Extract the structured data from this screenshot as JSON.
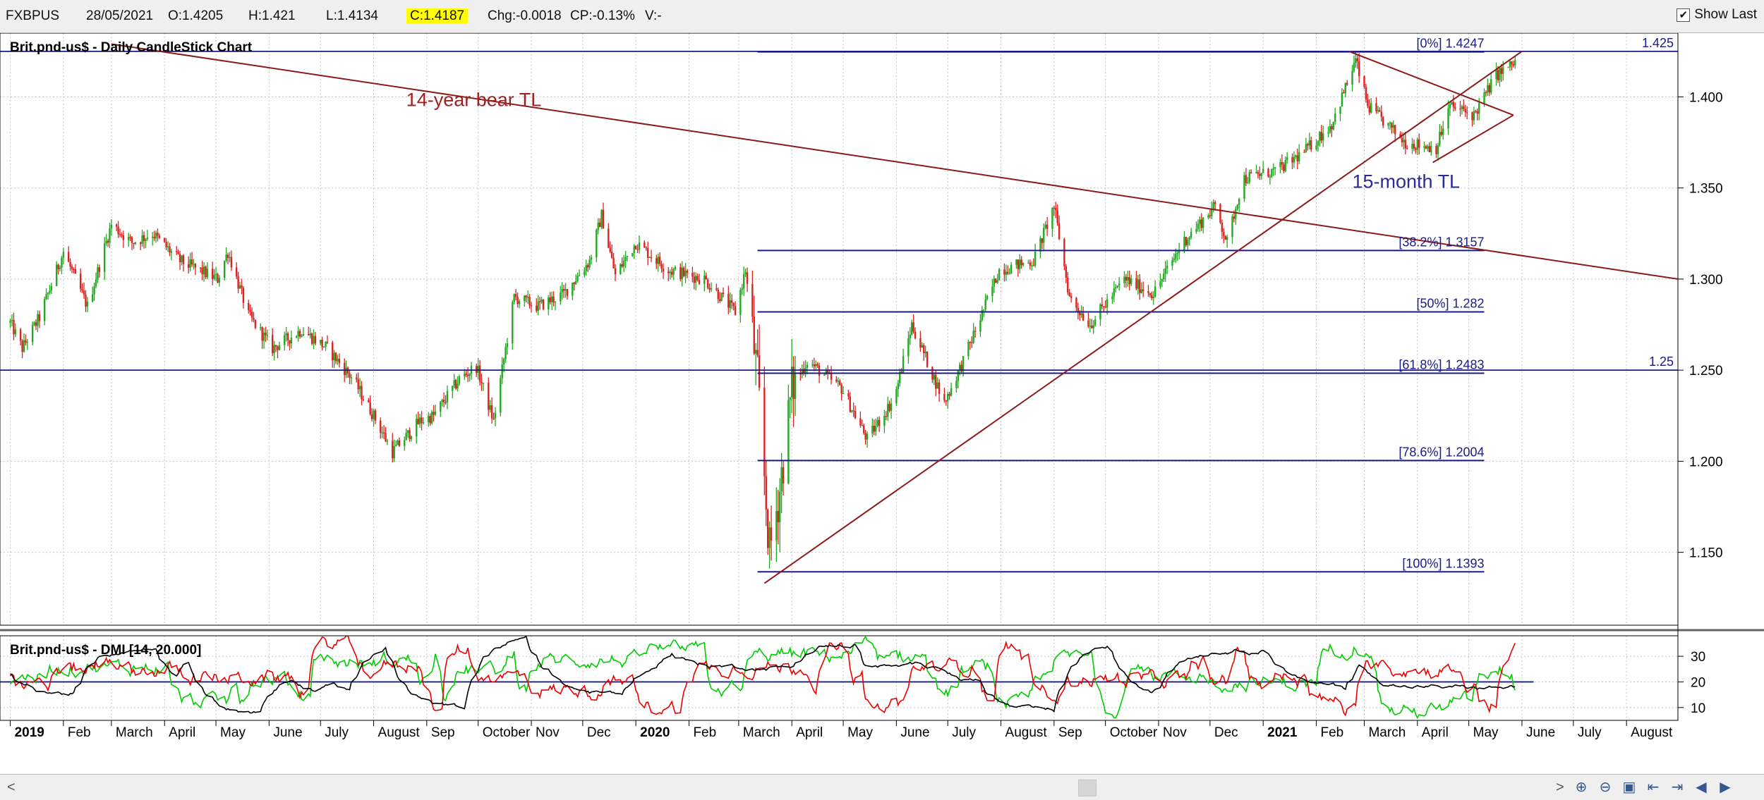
{
  "header": {
    "symbol": "FXBPUS",
    "date": "28/05/2021",
    "open": "O:1.4205",
    "high": "H:1.421",
    "low": "L:1.4134",
    "close": "C:1.4187",
    "change": "Chg:-0.0018",
    "change_pct": "CP:-0.13%",
    "volume": "V:-",
    "show_last_label": "Show Last",
    "show_last_checked": true
  },
  "chart_data": [
    {
      "type": "candlestick",
      "title": "Brit.pnd-us$ - Daily CandleStick Chart",
      "ylim": [
        1.11,
        1.435
      ],
      "y_ticks": [
        "1.150",
        "1.200",
        "1.250",
        "1.300",
        "1.350",
        "1.400"
      ],
      "x_labels": [
        "2019",
        "Feb",
        "March",
        "April",
        "May",
        "June",
        "July",
        "August",
        "Sep",
        "October",
        "Nov",
        "Dec",
        "2020",
        "Feb",
        "March",
        "April",
        "May",
        "June",
        "July",
        "August",
        "Sep",
        "October",
        "Nov",
        "Dec",
        "2021",
        "Feb",
        "March",
        "April",
        "May",
        "June",
        "July",
        "August"
      ],
      "close_path": [
        {
          "date": "2019-01-01",
          "value": 1.276
        },
        {
          "date": "2019-01-08",
          "value": 1.262
        },
        {
          "date": "2019-01-18",
          "value": 1.279
        },
        {
          "date": "2019-02-01",
          "value": 1.315
        },
        {
          "date": "2019-02-15",
          "value": 1.285
        },
        {
          "date": "2019-03-01",
          "value": 1.33
        },
        {
          "date": "2019-03-13",
          "value": 1.32
        },
        {
          "date": "2019-03-25",
          "value": 1.325
        },
        {
          "date": "2019-04-10",
          "value": 1.31
        },
        {
          "date": "2019-05-02",
          "value": 1.3
        },
        {
          "date": "2019-05-08",
          "value": 1.315
        },
        {
          "date": "2019-05-20",
          "value": 1.28
        },
        {
          "date": "2019-06-03",
          "value": 1.262
        },
        {
          "date": "2019-06-20",
          "value": 1.272
        },
        {
          "date": "2019-07-05",
          "value": 1.262
        },
        {
          "date": "2019-07-20",
          "value": 1.245
        },
        {
          "date": "2019-08-01",
          "value": 1.225
        },
        {
          "date": "2019-08-12",
          "value": 1.205
        },
        {
          "date": "2019-08-28",
          "value": 1.222
        },
        {
          "date": "2019-09-05",
          "value": 1.225
        },
        {
          "date": "2019-09-20",
          "value": 1.245
        },
        {
          "date": "2019-09-30",
          "value": 1.252
        },
        {
          "date": "2019-10-10",
          "value": 1.222
        },
        {
          "date": "2019-10-22",
          "value": 1.29
        },
        {
          "date": "2019-11-05",
          "value": 1.285
        },
        {
          "date": "2019-11-20",
          "value": 1.292
        },
        {
          "date": "2019-12-05",
          "value": 1.31
        },
        {
          "date": "2019-12-12",
          "value": 1.335
        },
        {
          "date": "2019-12-20",
          "value": 1.302
        },
        {
          "date": "2020-01-01",
          "value": 1.32
        },
        {
          "date": "2020-01-20",
          "value": 1.305
        },
        {
          "date": "2020-02-10",
          "value": 1.3
        },
        {
          "date": "2020-02-28",
          "value": 1.282
        },
        {
          "date": "2020-03-05",
          "value": 1.305
        },
        {
          "date": "2020-03-12",
          "value": 1.245
        },
        {
          "date": "2020-03-19",
          "value": 1.15
        },
        {
          "date": "2020-03-25",
          "value": 1.185
        },
        {
          "date": "2020-04-01",
          "value": 1.24
        },
        {
          "date": "2020-04-10",
          "value": 1.255
        },
        {
          "date": "2020-04-30",
          "value": 1.24
        },
        {
          "date": "2020-05-15",
          "value": 1.212
        },
        {
          "date": "2020-05-31",
          "value": 1.235
        },
        {
          "date": "2020-06-10",
          "value": 1.275
        },
        {
          "date": "2020-06-29",
          "value": 1.232
        },
        {
          "date": "2020-07-10",
          "value": 1.255
        },
        {
          "date": "2020-07-31",
          "value": 1.305
        },
        {
          "date": "2020-08-20",
          "value": 1.31
        },
        {
          "date": "2020-09-01",
          "value": 1.34
        },
        {
          "date": "2020-09-10",
          "value": 1.29
        },
        {
          "date": "2020-09-22",
          "value": 1.275
        },
        {
          "date": "2020-10-12",
          "value": 1.3
        },
        {
          "date": "2020-10-29",
          "value": 1.292
        },
        {
          "date": "2020-11-15",
          "value": 1.32
        },
        {
          "date": "2020-12-04",
          "value": 1.34
        },
        {
          "date": "2020-12-11",
          "value": 1.32
        },
        {
          "date": "2020-12-20",
          "value": 1.355
        },
        {
          "date": "2021-01-10",
          "value": 1.36
        },
        {
          "date": "2021-01-25",
          "value": 1.37
        },
        {
          "date": "2021-02-10",
          "value": 1.385
        },
        {
          "date": "2021-02-24",
          "value": 1.42
        },
        {
          "date": "2021-03-03",
          "value": 1.395
        },
        {
          "date": "2021-03-25",
          "value": 1.375
        },
        {
          "date": "2021-04-12",
          "value": 1.372
        },
        {
          "date": "2021-04-20",
          "value": 1.395
        },
        {
          "date": "2021-05-04",
          "value": 1.39
        },
        {
          "date": "2021-05-17",
          "value": 1.412
        },
        {
          "date": "2021-05-28",
          "value": 1.4187
        }
      ],
      "fibonacci": {
        "start_date": "2020-03-12",
        "end_date": "2021-05-10",
        "levels": [
          {
            "label": "[0%] 1.4247",
            "value": 1.4247
          },
          {
            "label": "[38.2%] 1.3157",
            "value": 1.3157
          },
          {
            "label": "[50%] 1.282",
            "value": 1.282
          },
          {
            "label": "[61.8%] 1.2483",
            "value": 1.2483
          },
          {
            "label": "[78.6%] 1.2004",
            "value": 1.2004
          },
          {
            "label": "[100%] 1.1393",
            "value": 1.1393
          }
        ]
      },
      "horizontal_lines": [
        {
          "value": 1.425,
          "label": "1.425"
        },
        {
          "value": 1.25,
          "label": "1.25"
        }
      ],
      "trendlines": [
        {
          "from": {
            "date": "2019-03-01",
            "value": 1.429
          },
          "to": {
            "date": "2021-08-31",
            "value": 1.3
          }
        },
        {
          "from": {
            "date": "2020-03-16",
            "value": 1.133
          },
          "to": {
            "date": "2021-06-01",
            "value": 1.425
          }
        },
        {
          "from": {
            "date": "2021-02-20",
            "value": 1.425
          },
          "to": {
            "date": "2021-05-27",
            "value": 1.39
          }
        },
        {
          "from": {
            "date": "2021-04-10",
            "value": 1.364
          },
          "to": {
            "date": "2021-05-27",
            "value": 1.39
          }
        }
      ],
      "annotations": [
        {
          "text": "14-year bear TL",
          "date": "2019-08-20",
          "value": 1.395
        },
        {
          "text": "15-month TL",
          "date": "2021-02-22",
          "value": 1.35
        }
      ]
    },
    {
      "type": "line",
      "title": "Brit.pnd-us$ - DMI [14, 20.000]",
      "ylim": [
        5,
        38
      ],
      "y_ticks": [
        "10",
        "20",
        "30"
      ],
      "reference_line": 20,
      "series": [
        {
          "color": "#00cc00",
          "range": [
            8,
            36
          ]
        },
        {
          "color": "#ee0000",
          "range": [
            8,
            36
          ]
        },
        {
          "color": "#000000",
          "range": [
            8,
            38
          ]
        }
      ]
    }
  ],
  "scrollbar": {
    "left_arrow": "<",
    "right_arrow": ">",
    "icons": [
      "zoom-in-icon",
      "zoom-out-icon",
      "fit-icon",
      "scroll-start-icon",
      "scroll-end-icon",
      "step-left-icon",
      "step-right-icon"
    ]
  },
  "colors": {
    "fib_line": "#1a1a8c",
    "trendline": "#8b1a1a",
    "candle_up": "#22aa22",
    "candle_down": "#dd2222",
    "annotation_bear": "#a02020",
    "annotation_tl": "#2a2a9a"
  }
}
